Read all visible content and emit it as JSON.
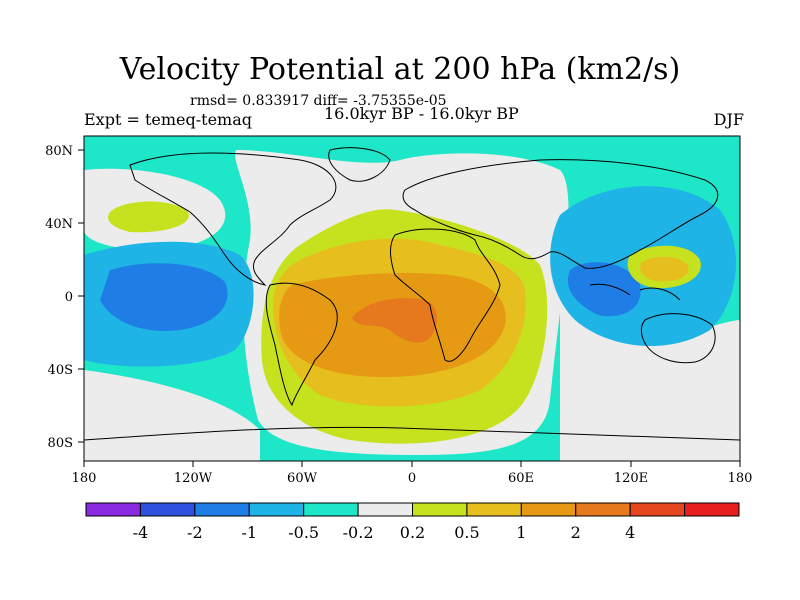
{
  "title": "Velocity Potential at 200 hPa (km2/s)",
  "stats": "rmsd= 0.833917 diff= -3.75355e-05",
  "experiment": "Expt = temeq-temaq",
  "period": "16.0kyr BP - 16.0kyr BP",
  "season": "DJF",
  "lon_ticks": [
    "180",
    "120W",
    "60W",
    "0",
    "60E",
    "120E",
    "180"
  ],
  "lat_ticks": [
    "80N",
    "40N",
    "0",
    "40S",
    "80S"
  ],
  "colorbar": {
    "colors": [
      "#8a2be2",
      "#3050e0",
      "#1e7ee6",
      "#1fb4e6",
      "#1ee6c8",
      "#ececec",
      "#c6e21e",
      "#e6be1e",
      "#e69a14",
      "#e6781e",
      "#e6461e",
      "#e61e1e"
    ],
    "labels": [
      "-4",
      "-2",
      "-1",
      "-0.5",
      "-0.2",
      "0.2",
      "0.5",
      "1",
      "2",
      "4"
    ]
  },
  "colors": {
    "ocean_background": "#1ee6c8",
    "land_outline": "#000000"
  }
}
